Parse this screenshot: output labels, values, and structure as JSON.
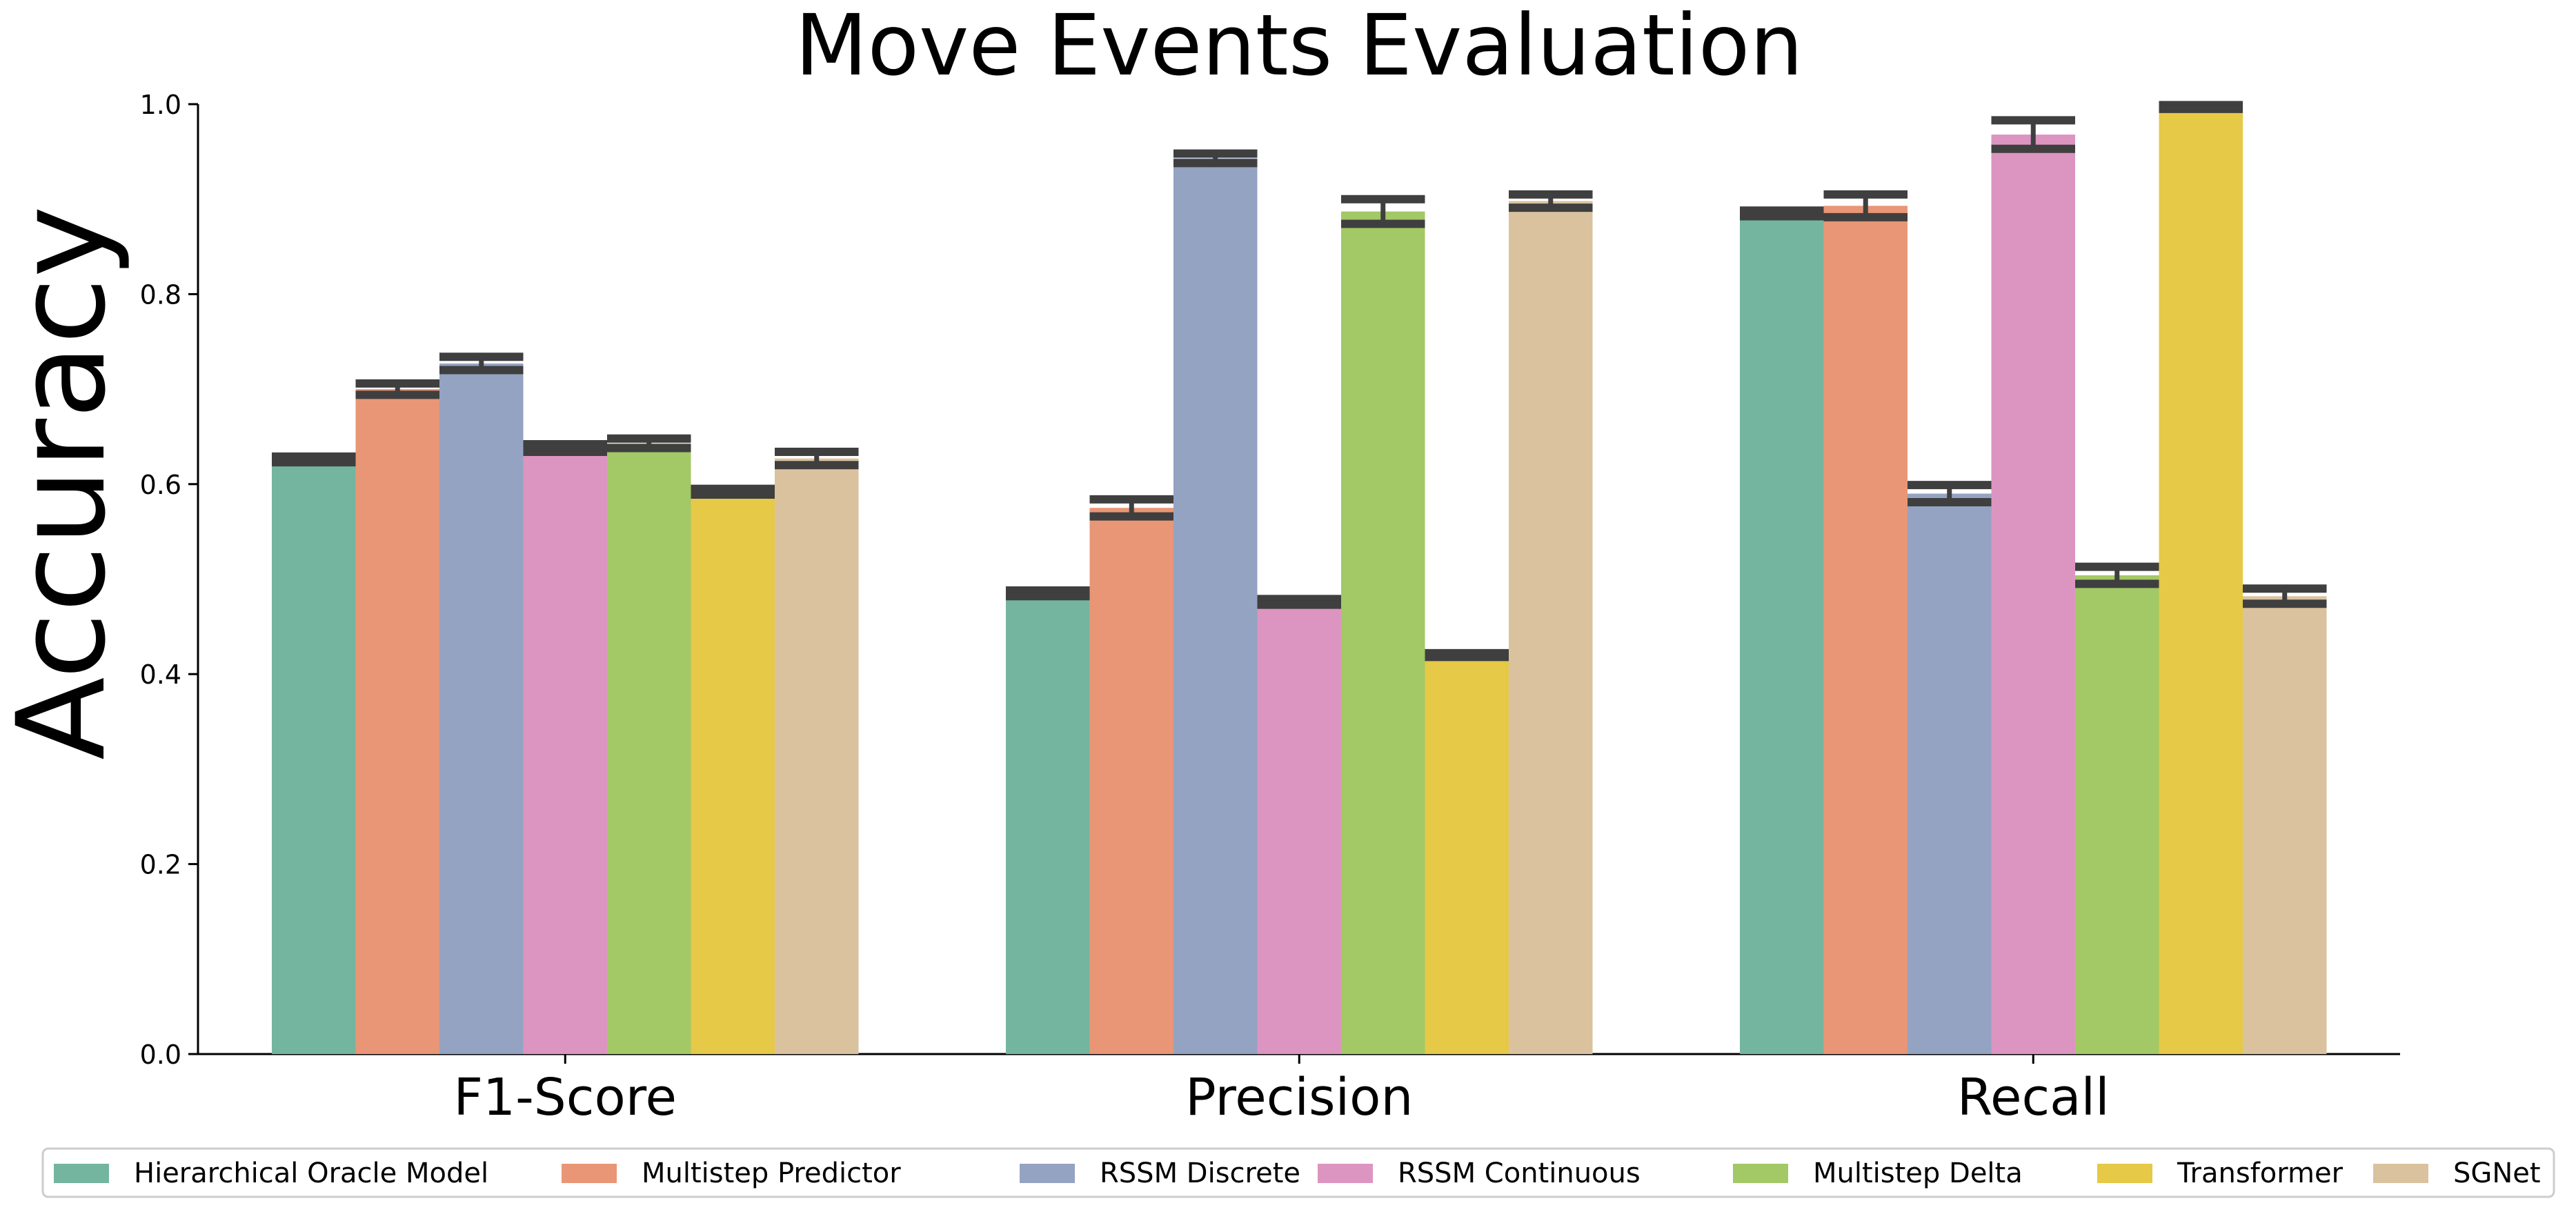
{
  "chart_data": {
    "type": "bar",
    "title": "Move Events Evaluation",
    "xlabel": "",
    "ylabel": "Accuracy",
    "ylim": [
      0,
      1.0
    ],
    "yticks": [
      "0.0",
      "0.2",
      "0.4",
      "0.6",
      "0.8",
      "1.0"
    ],
    "categories": [
      "F1-Score",
      "Precision",
      "Recall"
    ],
    "grid": false,
    "legend_position": "bottom",
    "series": [
      {
        "name": "Hierarchical Oracle Model",
        "color": "#74b5a0",
        "values": [
          0.626,
          0.485,
          0.885
        ],
        "errors": [
          0.003,
          0.003,
          0.003
        ]
      },
      {
        "name": "Multistep Predictor",
        "color": "#e99676",
        "values": [
          0.7,
          0.575,
          0.893
        ],
        "errors": [
          0.006,
          0.009,
          0.012
        ]
      },
      {
        "name": "RSSM Discrete",
        "color": "#94a3c2",
        "values": [
          0.727,
          0.943,
          0.59
        ],
        "errors": [
          0.007,
          0.005,
          0.009
        ]
      },
      {
        "name": "RSSM Continuous",
        "color": "#dc95c0",
        "values": [
          0.638,
          0.476,
          0.968
        ],
        "errors": [
          0.004,
          0.003,
          0.015
        ]
      },
      {
        "name": "Multistep Delta",
        "color": "#a3c866",
        "values": [
          0.643,
          0.887,
          0.504
        ],
        "errors": [
          0.005,
          0.013,
          0.009
        ]
      },
      {
        "name": "Transformer",
        "color": "#e5c947",
        "values": [
          0.592,
          0.42,
          0.997
        ],
        "errors": [
          0.003,
          0.002,
          0.002
        ]
      },
      {
        "name": "SGNet",
        "color": "#dac29f",
        "values": [
          0.627,
          0.898,
          0.482
        ],
        "errors": [
          0.007,
          0.007,
          0.008
        ]
      }
    ]
  }
}
